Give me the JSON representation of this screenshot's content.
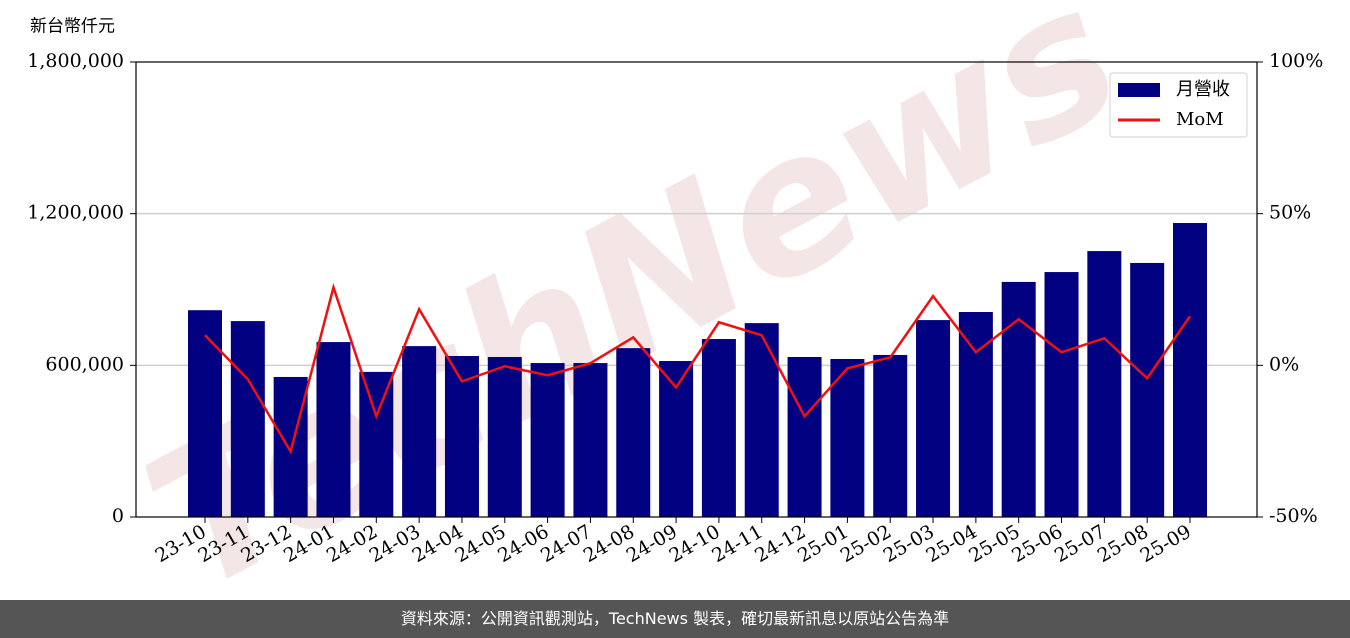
{
  "chart_data": {
    "type": "bar_line",
    "y_label": "新台幣仟元",
    "watermark": "TechNews",
    "categories": [
      "23-10",
      "23-11",
      "23-12",
      "24-01",
      "24-02",
      "24-03",
      "24-04",
      "24-05",
      "24-06",
      "24-07",
      "24-08",
      "24-09",
      "24-10",
      "24-11",
      "24-12",
      "25-01",
      "25-02",
      "25-03",
      "25-04",
      "25-05",
      "25-06",
      "25-07",
      "25-08",
      "25-09"
    ],
    "series": [
      {
        "name": "月營收",
        "type": "bar",
        "color": "#000080",
        "values": [
          818000,
          775000,
          554000,
          692000,
          574000,
          676000,
          637000,
          633000,
          609000,
          609000,
          668000,
          617000,
          704000,
          767000,
          633000,
          625000,
          641000,
          779000,
          811000,
          930000,
          969000,
          1052000,
          1005000,
          1163000
        ]
      },
      {
        "name": "MoM",
        "type": "line",
        "color": "#ee1111",
        "axis": "y2",
        "values": [
          9.9,
          -4.6,
          -28.4,
          25.7,
          -16.8,
          18.5,
          -5.3,
          -0.3,
          -3.3,
          0.7,
          9.2,
          -7.3,
          14.2,
          9.9,
          -16.8,
          -1.0,
          2.6,
          22.8,
          4.3,
          15.2,
          4.3,
          8.9,
          -4.3,
          16.2
        ]
      }
    ],
    "ylim": [
      0,
      1800000
    ],
    "yticks": [
      0,
      {
        "value": 600000,
        "label": "600,000"
      },
      {
        "value": 1200000,
        "label": "1,200,000"
      },
      {
        "value": 1800000,
        "label": "1,800,000"
      }
    ],
    "y2lim": [
      -50,
      100
    ],
    "y2ticks": [
      {
        "value": -50,
        "label": "-50%"
      },
      {
        "value": 0,
        "label": "0%"
      },
      {
        "value": 50,
        "label": "50%"
      },
      {
        "value": 100,
        "label": "100%"
      }
    ],
    "grid": true,
    "legend": "upper-right"
  },
  "footer": "資料來源：公開資訊觀測站，TechNews 製表，確切最新訊息以原站公告為準"
}
